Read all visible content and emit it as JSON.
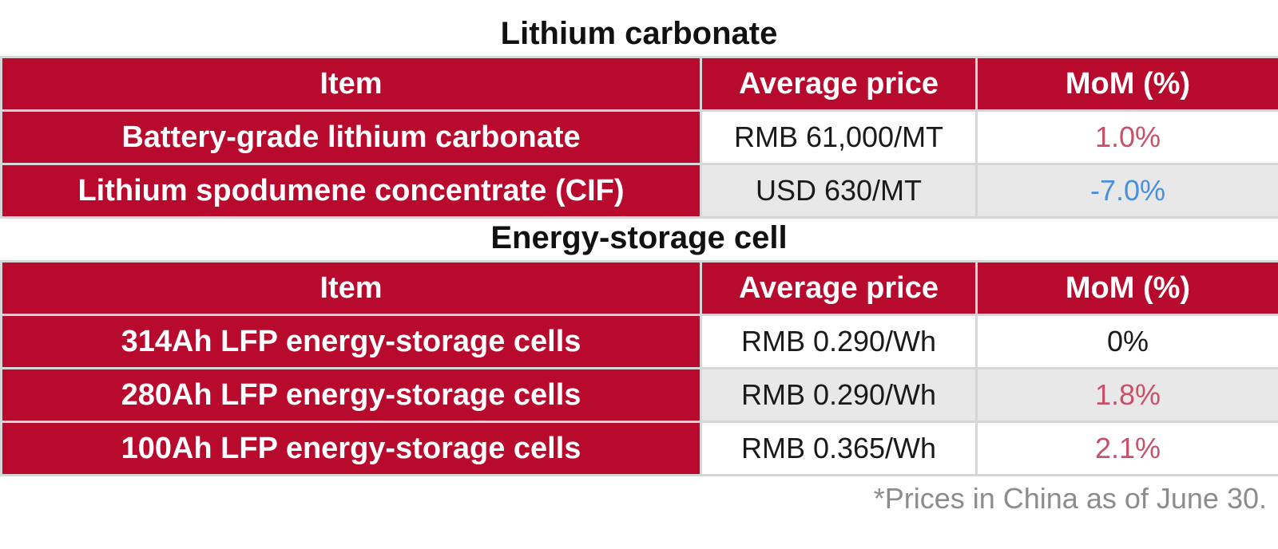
{
  "section1": {
    "title": "Lithium carbonate",
    "headers": {
      "item": "Item",
      "price": "Average price",
      "mom": "MoM (%)"
    },
    "rows": [
      {
        "item": "Battery-grade lithium carbonate",
        "price": "RMB 61,000/MT",
        "mom": "1.0%"
      },
      {
        "item": "Lithium spodumene concentrate (CIF)",
        "price": "USD 630/MT",
        "mom": "-7.0%"
      }
    ]
  },
  "section2": {
    "title": "Energy-storage cell",
    "headers": {
      "item": "Item",
      "price": "Average price",
      "mom": "MoM (%)"
    },
    "rows": [
      {
        "item": "314Ah LFP energy-storage cells",
        "price": "RMB 0.290/Wh",
        "mom": "0%"
      },
      {
        "item": "280Ah LFP energy-storage cells",
        "price": "RMB 0.290/Wh",
        "mom": "1.8%"
      },
      {
        "item": "100Ah LFP energy-storage cells",
        "price": "RMB 0.365/Wh",
        "mom": "2.1%"
      }
    ]
  },
  "footnote": "*Prices in China as of June 30.",
  "colors": {
    "header_bg": "#b70a2c",
    "mom_up": "#c8506a",
    "mom_down": "#4a90d9",
    "mom_flat": "#1a1a1a"
  }
}
